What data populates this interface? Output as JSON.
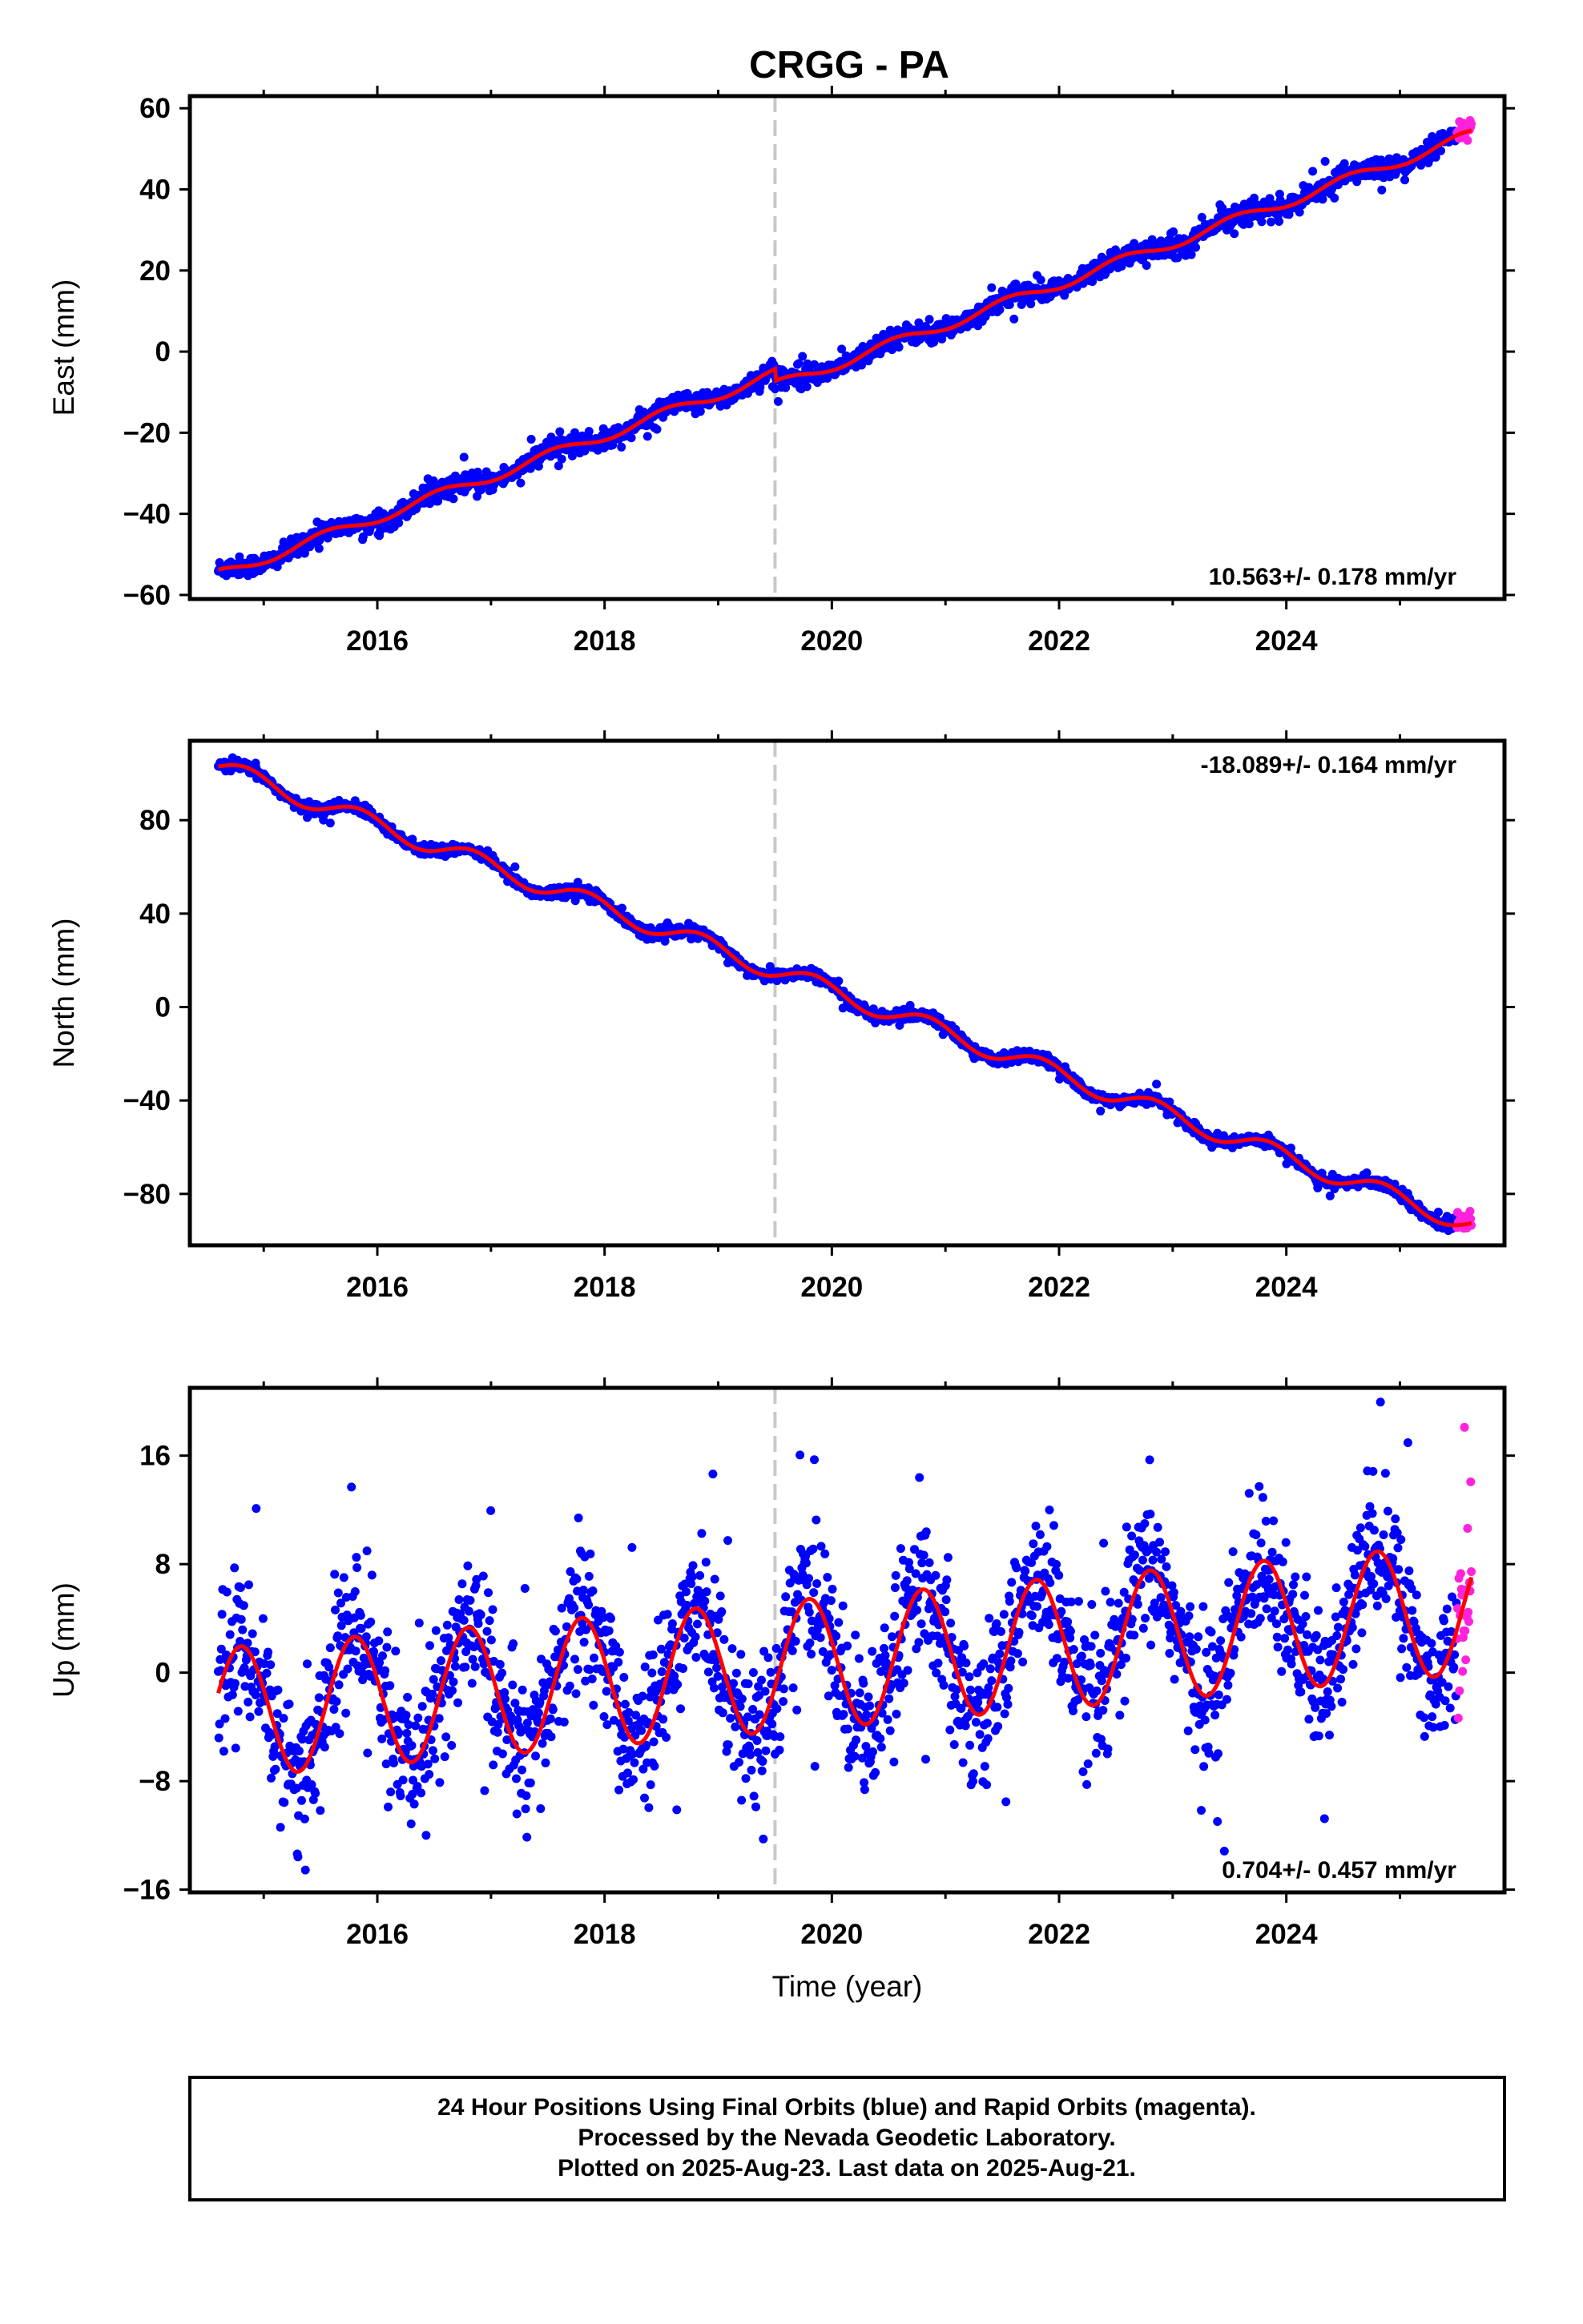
{
  "title": "CRGG - PA",
  "colors": {
    "final_orbits": "#0000ff",
    "rapid_orbits": "#ff22dd",
    "model_fit": "#ff0000",
    "event_line": "#c8c8c8",
    "frame": "#000000"
  },
  "footer": {
    "line1": "24 Hour Positions Using Final Orbits (blue) and Rapid Orbits (magenta).",
    "line2": "Processed by the Nevada Geodetic Laboratory.",
    "line3": "Plotted on 2025-Aug-23. Last data on 2025-Aug-21."
  },
  "chart_data": [
    {
      "type": "scatter",
      "component": "east",
      "ylabel": "East (mm)",
      "xlabel": "",
      "xlim": [
        2014.35,
        2025.92
      ],
      "ylim": [
        -61,
        63
      ],
      "xticks": [
        2016,
        2018,
        2020,
        2022,
        2024
      ],
      "yticks": [
        -60,
        -40,
        -20,
        0,
        20,
        40,
        60
      ],
      "rate_label": "10.563+/- 0.178 mm/yr",
      "rate_label_position": "bottom-right",
      "event_line_x": 2019.5,
      "start_year": 2014.6,
      "end_year": 2025.63,
      "rapid_from_year": 2025.5,
      "noise_std": 1.2,
      "outlier_rate": 0.01,
      "model": {
        "intercept": -55,
        "rate": 10.1,
        "annual_amp": 1.3,
        "annual_phase": 0.3,
        "offsets": [
          {
            "x": 2019.5,
            "dy": -3.0
          }
        ]
      },
      "series": [
        {
          "name": "Final Orbits",
          "color": "#0000ff"
        },
        {
          "name": "Rapid Orbits",
          "color": "#ff22dd"
        }
      ]
    },
    {
      "type": "scatter",
      "component": "north",
      "ylabel": "North (mm)",
      "xlabel": "",
      "xlim": [
        2014.35,
        2025.92
      ],
      "ylim": [
        -102,
        114
      ],
      "xticks": [
        2016,
        2018,
        2020,
        2022,
        2024
      ],
      "yticks": [
        -80,
        -40,
        0,
        40,
        80
      ],
      "rate_label": "-18.089+/- 0.164 mm/yr",
      "rate_label_position": "top-right",
      "event_line_x": 2019.5,
      "start_year": 2014.6,
      "end_year": 2025.63,
      "rapid_from_year": 2025.5,
      "noise_std": 1.2,
      "outlier_rate": 0.01,
      "model": {
        "intercept": 103,
        "rate": -17.8,
        "annual_amp": 4.0,
        "annual_phase": 0.6,
        "offsets": []
      },
      "series": [
        {
          "name": "Final Orbits",
          "color": "#0000ff"
        },
        {
          "name": "Rapid Orbits",
          "color": "#ff22dd"
        }
      ]
    },
    {
      "type": "scatter",
      "component": "up",
      "ylabel": "Up (mm)",
      "xlabel": "Time (year)",
      "xlim": [
        2014.35,
        2025.92
      ],
      "ylim": [
        -16.2,
        21
      ],
      "xticks": [
        2016,
        2018,
        2020,
        2022,
        2024
      ],
      "yticks": [
        -16,
        -8,
        0,
        8,
        16
      ],
      "rate_label": "0.704+/- 0.457 mm/yr",
      "rate_label_position": "bottom-right",
      "event_line_x": 2019.5,
      "start_year": 2014.6,
      "end_year": 2025.63,
      "rapid_from_year": 2025.5,
      "noise_std": 2.6,
      "outlier_rate": 0.02,
      "model": {
        "intercept": -3,
        "rate": 0.7,
        "annual_amp": 4.8,
        "annual_phase": 0.55,
        "offsets": []
      },
      "series": [
        {
          "name": "Final Orbits",
          "color": "#0000ff"
        },
        {
          "name": "Rapid Orbits",
          "color": "#ff22dd"
        }
      ]
    }
  ]
}
